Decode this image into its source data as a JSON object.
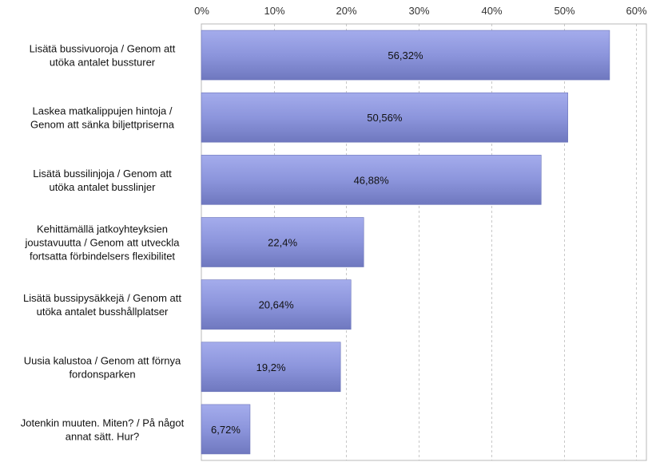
{
  "chart_data": {
    "type": "bar",
    "orientation": "horizontal",
    "title": "",
    "xlabel": "",
    "ylabel": "",
    "xlim": [
      0,
      60
    ],
    "ticks": [
      "0%",
      "10%",
      "20%",
      "30%",
      "40%",
      "50%",
      "60%"
    ],
    "tick_values": [
      0,
      10,
      20,
      30,
      40,
      50,
      60
    ],
    "axis_position": "top",
    "grid": true,
    "bar_color": "#8a94da",
    "categories": [
      [
        "Lisätä bussivuoroja / Genom att",
        "utöka antalet bussturer"
      ],
      [
        "Laskea matkalippujen hintoja /",
        "Genom att sänka biljettpriserna"
      ],
      [
        "Lisätä bussilinjoja / Genom att",
        "utöka antalet busslinjer"
      ],
      [
        "Kehittämällä jatkoyhteyksien",
        "joustavuutta / Genom att utveckla",
        "fortsatta förbindelsers flexibilitet"
      ],
      [
        "Lisätä bussipysäkkejä / Genom att",
        "utöka antalet busshållplatser"
      ],
      [
        "Uusia kalustoa / Genom att förnya",
        "fordonsparken"
      ],
      [
        "Jotenkin muuten. Miten? / På något",
        "annat sätt. Hur?"
      ]
    ],
    "values": [
      56.32,
      50.56,
      46.88,
      22.4,
      20.64,
      19.2,
      6.72
    ],
    "value_labels": [
      "56,32%",
      "50,56%",
      "46,88%",
      "22,4%",
      "20,64%",
      "19,2%",
      "6,72%"
    ]
  }
}
